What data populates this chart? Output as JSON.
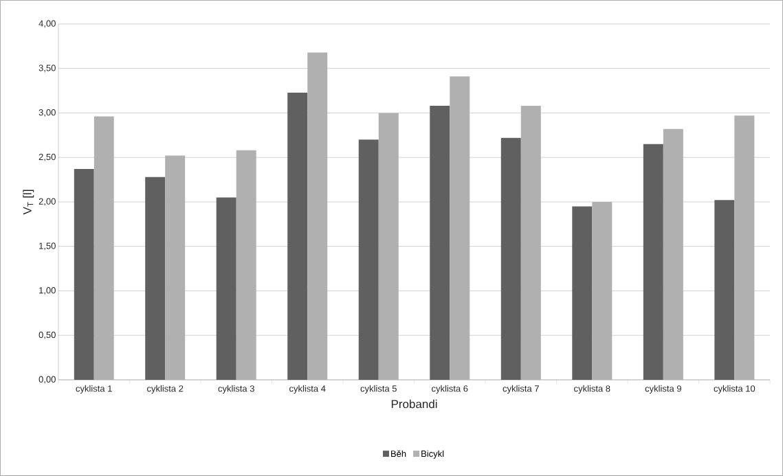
{
  "chart_data": {
    "type": "bar",
    "xlabel": "Probandi",
    "ylabel": "V$_{T}$ [l]",
    "categories": [
      "cyklista 1",
      "cyklista 2",
      "cyklista 3",
      "cyklista 4",
      "cyklista 5",
      "cyklista 6",
      "cyklista 7",
      "cyklista 8",
      "cyklista 9",
      "cyklista 10"
    ],
    "series": [
      {
        "name": "Běh",
        "color": "#606060",
        "values": [
          2.37,
          2.28,
          2.05,
          3.23,
          2.7,
          3.08,
          2.72,
          1.95,
          2.65,
          2.02
        ]
      },
      {
        "name": "Bicykl",
        "color": "#b0b0b0",
        "values": [
          2.96,
          2.52,
          2.58,
          3.68,
          3.0,
          3.41,
          3.08,
          2.0,
          2.82,
          2.97
        ]
      }
    ],
    "ylim": [
      0,
      4
    ],
    "yticks": [
      {
        "value": 0,
        "label": "0,00"
      },
      {
        "value": 0.5,
        "label": "0,50"
      },
      {
        "value": 1,
        "label": "1,00"
      },
      {
        "value": 1.5,
        "label": "1,50"
      },
      {
        "value": 2,
        "label": "2,00"
      },
      {
        "value": 2.5,
        "label": "2,50"
      },
      {
        "value": 3,
        "label": "3,00"
      },
      {
        "value": 3.5,
        "label": "3,50"
      },
      {
        "value": 4,
        "label": "4,00"
      }
    ],
    "grid": "y",
    "legend": "bottom"
  }
}
